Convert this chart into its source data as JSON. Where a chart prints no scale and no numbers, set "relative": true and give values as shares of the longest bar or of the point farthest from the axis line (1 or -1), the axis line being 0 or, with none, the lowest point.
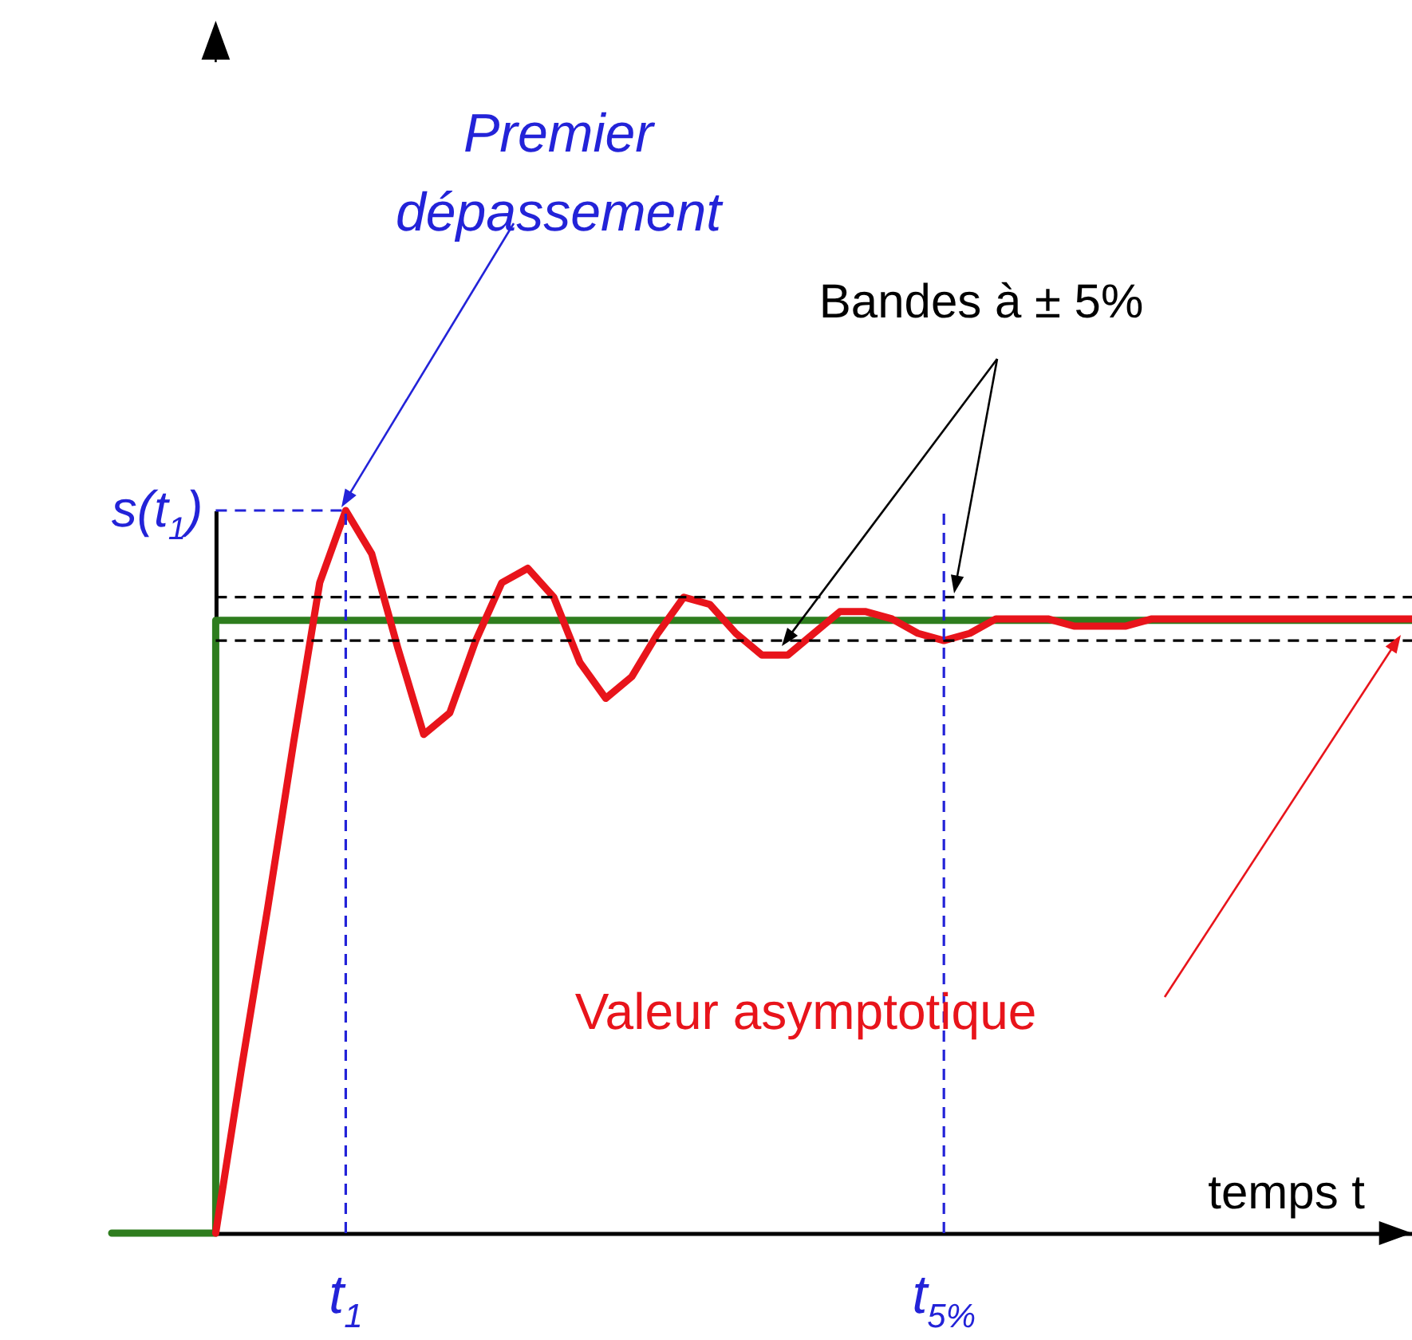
{
  "chart_data": {
    "type": "line",
    "relative": true,
    "xlabel": "temps t",
    "categories": [
      null,
      null,
      null,
      null,
      null,
      null,
      null,
      null,
      null,
      "t$_{1}$",
      null,
      null,
      null,
      null,
      null,
      null,
      null,
      null,
      null,
      null,
      null,
      null,
      null,
      null,
      null,
      null,
      null,
      null,
      null,
      null,
      null,
      null,
      "t$_{5%}$",
      null,
      null,
      null,
      null,
      null,
      null,
      null,
      null,
      null,
      null,
      null,
      null,
      null,
      null,
      null,
      null,
      null,
      null
    ],
    "series": [
      {
        "type": "step",
        "color": "#2e7d1e",
        "values": [
          0,
          0,
          0,
          0,
          0.848,
          0.848,
          0.848,
          0.848,
          0.848,
          0.848,
          0.848,
          0.848,
          0.848,
          0.848,
          0.848,
          0.848,
          0.848,
          0.848,
          0.848,
          0.848,
          0.848,
          0.848,
          0.848,
          0.848,
          0.848,
          0.848,
          0.848,
          0.848,
          0.848,
          0.848,
          0.848,
          0.848,
          0.848,
          0.848,
          0.848,
          0.848,
          0.848,
          0.848,
          0.848,
          0.848,
          0.848,
          0.848,
          0.848,
          0.848,
          0.848,
          0.848,
          0.848,
          0.848,
          0.848,
          0.848,
          0.848
        ]
      },
      {
        "type": "line",
        "color": "#e8141b",
        "values": [
          null,
          null,
          null,
          null,
          0,
          0.23,
          0.45,
          0.68,
          0.9,
          1.0,
          0.94,
          0.81,
          0.69,
          0.72,
          0.82,
          0.9,
          0.92,
          0.88,
          0.79,
          0.74,
          0.77,
          0.83,
          0.88,
          0.87,
          0.83,
          0.8,
          0.8,
          0.83,
          0.86,
          0.86,
          0.85,
          0.83,
          0.82,
          0.83,
          0.85,
          0.85,
          0.85,
          0.84,
          0.84,
          0.84,
          0.85,
          0.85,
          0.85,
          0.85,
          0.85,
          0.85,
          0.85,
          0.85,
          0.85,
          0.85,
          0.85
        ]
      }
    ],
    "ref_lines": [
      {
        "axis": "y",
        "value": 1.0,
        "label": "s(t$_{1}$)",
        "color": "#2323d8",
        "line_style": "dashed"
      },
      {
        "axis": "y",
        "value": 0.88,
        "color": "#000000",
        "line_style": "dashed"
      },
      {
        "axis": "y",
        "value": 0.82,
        "color": "#000000",
        "line_style": "dashed"
      },
      {
        "axis": "x",
        "value": "t$_{1}$",
        "color": "#2323d8",
        "line_style": "dashed"
      },
      {
        "axis": "x",
        "value": "t$_{5%}$",
        "color": "#2323d8",
        "line_style": "dashed"
      }
    ],
    "annotations": [
      "Premier dépassement",
      "Bandes à ± 5%",
      "Valeur asymptotique"
    ]
  }
}
